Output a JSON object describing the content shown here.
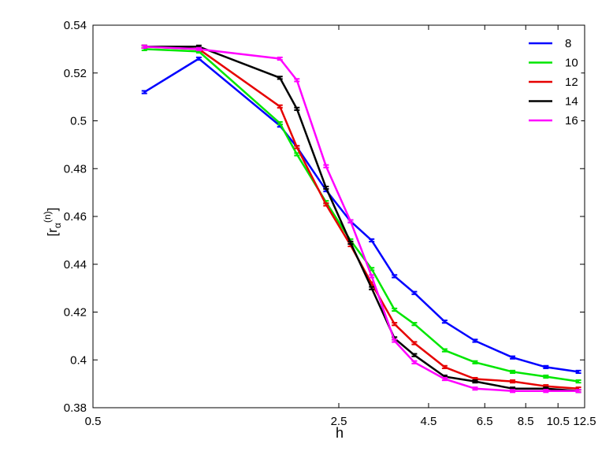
{
  "chart_data": {
    "type": "line",
    "title": "",
    "xlabel": "h",
    "ylabel_main": "[r",
    "ylabel_sub": "α",
    "ylabel_sup": "(n)",
    "ylabel_close": "]",
    "x_scale": "log",
    "xlim": [
      0.5,
      12.5
    ],
    "ylim": [
      0.38,
      0.54
    ],
    "xticks": [
      {
        "value": 0.5,
        "label": "0.5"
      },
      {
        "value": 2.5,
        "label": "2.5"
      },
      {
        "value": 4.5,
        "label": "4.5"
      },
      {
        "value": 6.5,
        "label": "6.5"
      },
      {
        "value": 8.5,
        "label": "8.5"
      },
      {
        "value": 10.5,
        "label": "10.5"
      },
      {
        "value": 12.5,
        "label": "12.5"
      }
    ],
    "yticks": [
      {
        "value": 0.38,
        "label": "0.38"
      },
      {
        "value": 0.4,
        "label": "0.4"
      },
      {
        "value": 0.42,
        "label": "0.42"
      },
      {
        "value": 0.44,
        "label": "0.44"
      },
      {
        "value": 0.46,
        "label": "0.46"
      },
      {
        "value": 0.48,
        "label": "0.48"
      },
      {
        "value": 0.5,
        "label": "0.5"
      },
      {
        "value": 0.52,
        "label": "0.52"
      },
      {
        "value": 0.54,
        "label": "0.54"
      }
    ],
    "grid": false,
    "legend_position": "top-right",
    "error_bars": true,
    "series": [
      {
        "name": "8",
        "color": "#0000ff",
        "x": [
          0.7,
          1.0,
          1.7,
          1.9,
          2.3,
          2.7,
          3.1,
          3.6,
          4.1,
          5.0,
          6.1,
          7.8,
          9.7,
          12.0
        ],
        "y": [
          0.512,
          0.526,
          0.498,
          0.489,
          0.471,
          0.458,
          0.45,
          0.435,
          0.428,
          0.416,
          0.408,
          0.401,
          0.397,
          0.395
        ]
      },
      {
        "name": "10",
        "color": "#00e600",
        "x": [
          0.7,
          1.0,
          1.7,
          1.9,
          2.3,
          2.7,
          3.1,
          3.6,
          4.1,
          5.0,
          6.1,
          7.8,
          9.7,
          12.0
        ],
        "y": [
          0.53,
          0.529,
          0.499,
          0.486,
          0.466,
          0.45,
          0.438,
          0.421,
          0.415,
          0.404,
          0.399,
          0.395,
          0.393,
          0.391
        ]
      },
      {
        "name": "12",
        "color": "#e60000",
        "x": [
          0.7,
          1.0,
          1.7,
          1.9,
          2.3,
          2.7,
          3.1,
          3.6,
          4.1,
          5.0,
          6.1,
          7.8,
          9.7,
          12.0
        ],
        "y": [
          0.531,
          0.53,
          0.506,
          0.489,
          0.465,
          0.448,
          0.432,
          0.415,
          0.407,
          0.397,
          0.392,
          0.391,
          0.389,
          0.388
        ]
      },
      {
        "name": "14",
        "color": "#000000",
        "x": [
          0.7,
          1.0,
          1.7,
          1.9,
          2.3,
          2.7,
          3.1,
          3.6,
          4.1,
          5.0,
          6.1,
          7.8,
          9.7,
          12.0
        ],
        "y": [
          0.531,
          0.531,
          0.518,
          0.505,
          0.472,
          0.449,
          0.43,
          0.409,
          0.402,
          0.393,
          0.391,
          0.388,
          0.388,
          0.387
        ]
      },
      {
        "name": "16",
        "color": "#ff00ff",
        "x": [
          0.7,
          1.0,
          1.7,
          1.9,
          2.3,
          2.7,
          3.1,
          3.6,
          4.1,
          5.0,
          6.1,
          7.8,
          9.7,
          12.0
        ],
        "y": [
          0.531,
          0.53,
          0.526,
          0.517,
          0.481,
          0.458,
          0.435,
          0.408,
          0.399,
          0.392,
          0.388,
          0.387,
          0.387,
          0.387
        ]
      }
    ]
  }
}
